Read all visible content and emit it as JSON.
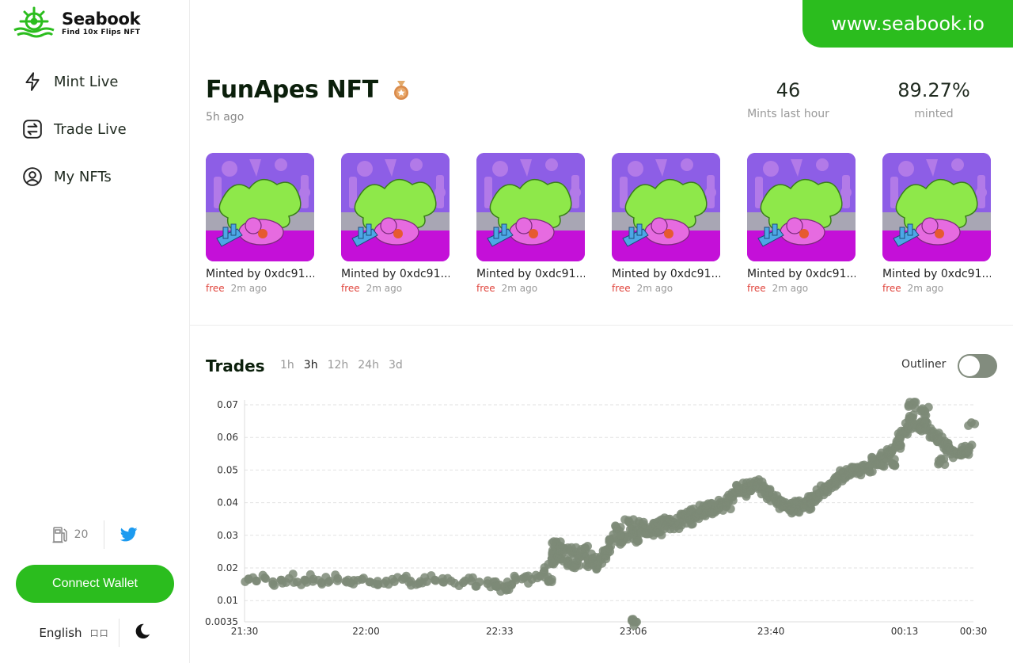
{
  "brand": {
    "name": "Seabook",
    "tagline": "Find 10x Flips NFT",
    "site": "www.seabook.io",
    "accent": "#2bbd1e"
  },
  "nav": [
    {
      "label": "Mint Live",
      "icon": "lightning-icon"
    },
    {
      "label": "Trade Live",
      "icon": "swap-icon"
    },
    {
      "label": "My NFTs",
      "icon": "user-circle-icon"
    }
  ],
  "gas": {
    "value": "20",
    "icon": "gas-pump-icon"
  },
  "connect_label": "Connect Wallet",
  "language": {
    "label": "English",
    "flag": "口口"
  },
  "collection": {
    "name": "FunApes NFT",
    "age": "5h ago",
    "stats": [
      {
        "value": "46",
        "label": "Mints last hour"
      },
      {
        "value": "89.27%",
        "label": "minted"
      }
    ]
  },
  "mints": [
    {
      "by": "Minted by 0xdc91...",
      "price": "free",
      "ago": "2m ago"
    },
    {
      "by": "Minted by 0xdc91...",
      "price": "free",
      "ago": "2m ago"
    },
    {
      "by": "Minted by 0xdc91...",
      "price": "free",
      "ago": "2m ago"
    },
    {
      "by": "Minted by 0xdc91...",
      "price": "free",
      "ago": "2m ago"
    },
    {
      "by": "Minted by 0xdc91...",
      "price": "free",
      "ago": "2m ago"
    },
    {
      "by": "Minted by 0xdc91...",
      "price": "free",
      "ago": "2m ago"
    }
  ],
  "trades": {
    "title": "Trades",
    "ranges": [
      "1h",
      "3h",
      "12h",
      "24h",
      "3d"
    ],
    "active_range": "3h",
    "outliner_label": "Outliner",
    "outliner_on": false
  },
  "chart_data": {
    "type": "scatter",
    "title": "",
    "xlabel": "",
    "ylabel": "",
    "xlim": [
      "21:30",
      "00:30"
    ],
    "ylim": [
      0.0035,
      0.07
    ],
    "y_ticks": [
      "0.07",
      "0.06",
      "0.05",
      "0.04",
      "0.03",
      "0.02",
      "0.01",
      "0.0035"
    ],
    "x_ticks": [
      "21:30",
      "22:00",
      "22:33",
      "23:06",
      "23:40",
      "00:13",
      "00:30"
    ],
    "x_tick_minutes": [
      0,
      30,
      63,
      96,
      130,
      163,
      180
    ],
    "grid": true,
    "point_color": "#7d8a77",
    "series": [
      {
        "points": [
          [
            1,
            0.0165
          ],
          [
            3,
            0.016
          ],
          [
            5,
            0.017
          ],
          [
            7,
            0.0158
          ],
          [
            9,
            0.0163
          ],
          [
            11,
            0.0168
          ],
          [
            13,
            0.0157
          ],
          [
            15,
            0.0162
          ],
          [
            17,
            0.0166
          ],
          [
            19,
            0.0155
          ],
          [
            21,
            0.016
          ],
          [
            23,
            0.0168
          ],
          [
            25,
            0.0159
          ],
          [
            27,
            0.0162
          ],
          [
            29,
            0.0165
          ],
          [
            31,
            0.0157
          ],
          [
            33,
            0.015
          ],
          [
            35,
            0.016
          ],
          [
            37,
            0.0158
          ],
          [
            39,
            0.0165
          ],
          [
            41,
            0.016
          ],
          [
            43,
            0.0152
          ],
          [
            45,
            0.0158
          ],
          [
            47,
            0.0163
          ],
          [
            49,
            0.0157
          ],
          [
            51,
            0.016
          ],
          [
            54,
            0.0155
          ],
          [
            56,
            0.016
          ],
          [
            58,
            0.0157
          ],
          [
            60,
            0.0152
          ],
          [
            62,
            0.0158
          ],
          [
            63,
            0.0148
          ],
          [
            64,
            0.0142
          ],
          [
            65,
            0.0145
          ],
          [
            66,
            0.015
          ],
          [
            67,
            0.0163
          ],
          [
            69,
            0.017
          ],
          [
            71,
            0.0165
          ],
          [
            73,
            0.0175
          ],
          [
            74,
            0.019
          ],
          [
            75,
            0.016
          ],
          [
            76,
            0.024
          ],
          [
            76,
            0.0215
          ],
          [
            77,
            0.028
          ],
          [
            78,
            0.023
          ],
          [
            79,
            0.026
          ],
          [
            80,
            0.022
          ],
          [
            81,
            0.025
          ],
          [
            82,
            0.021
          ],
          [
            83,
            0.0235
          ],
          [
            84,
            0.026
          ],
          [
            85,
            0.0215
          ],
          [
            86,
            0.023
          ],
          [
            87,
            0.021
          ],
          [
            88,
            0.0225
          ],
          [
            89,
            0.024
          ],
          [
            90,
            0.026
          ],
          [
            91,
            0.029
          ],
          [
            92,
            0.032
          ],
          [
            93,
            0.028
          ],
          [
            94,
            0.03
          ],
          [
            95,
            0.034
          ],
          [
            96,
            0.031
          ],
          [
            97,
            0.029
          ],
          [
            98,
            0.033
          ],
          [
            99,
            0.032
          ],
          [
            100,
            0.0305
          ],
          [
            101,
            0.033
          ],
          [
            102,
            0.0315
          ],
          [
            103,
            0.034
          ],
          [
            104,
            0.033
          ],
          [
            105,
            0.035
          ],
          [
            106,
            0.034
          ],
          [
            107,
            0.033
          ],
          [
            108,
            0.0355
          ],
          [
            109,
            0.036
          ],
          [
            110,
            0.0345
          ],
          [
            111,
            0.037
          ],
          [
            112,
            0.0365
          ],
          [
            113,
            0.038
          ],
          [
            114,
            0.037
          ],
          [
            115,
            0.0385
          ],
          [
            116,
            0.0375
          ],
          [
            117,
            0.0395
          ],
          [
            118,
            0.04
          ],
          [
            119,
            0.039
          ],
          [
            120,
            0.042
          ],
          [
            121,
            0.043
          ],
          [
            122,
            0.044
          ],
          [
            123,
            0.043
          ],
          [
            124,
            0.045
          ],
          [
            125,
            0.0445
          ],
          [
            126,
            0.046
          ],
          [
            127,
            0.0455
          ],
          [
            128,
            0.044
          ],
          [
            129,
            0.043
          ],
          [
            130,
            0.042
          ],
          [
            131,
            0.041
          ],
          [
            132,
            0.04
          ],
          [
            133,
            0.0395
          ],
          [
            134,
            0.0385
          ],
          [
            135,
            0.039
          ],
          [
            136,
            0.038
          ],
          [
            137,
            0.0395
          ],
          [
            138,
            0.04
          ],
          [
            139,
            0.039
          ],
          [
            140,
            0.041
          ],
          [
            141,
            0.042
          ],
          [
            142,
            0.043
          ],
          [
            143,
            0.044
          ],
          [
            144,
            0.045
          ],
          [
            145,
            0.046
          ],
          [
            146,
            0.047
          ],
          [
            147,
            0.048
          ],
          [
            148,
            0.049
          ],
          [
            149,
            0.0485
          ],
          [
            150,
            0.0495
          ],
          [
            151,
            0.05
          ],
          [
            152,
            0.0495
          ],
          [
            153,
            0.051
          ],
          [
            154,
            0.0505
          ],
          [
            155,
            0.052
          ],
          [
            156,
            0.053
          ],
          [
            157,
            0.0525
          ],
          [
            158,
            0.054
          ],
          [
            159,
            0.055
          ],
          [
            160,
            0.056
          ],
          [
            161,
            0.058
          ],
          [
            162,
            0.06
          ],
          [
            163,
            0.062
          ],
          [
            164,
            0.063
          ],
          [
            165,
            0.066
          ],
          [
            166,
            0.064
          ],
          [
            167,
            0.063
          ],
          [
            168,
            0.065
          ],
          [
            169,
            0.062
          ],
          [
            170,
            0.061
          ],
          [
            171,
            0.06
          ],
          [
            172,
            0.059
          ],
          [
            173,
            0.058
          ],
          [
            174,
            0.057
          ],
          [
            175,
            0.056
          ],
          [
            176,
            0.055
          ],
          [
            177,
            0.056
          ],
          [
            178,
            0.055
          ],
          [
            179,
            0.057
          ],
          [
            179.5,
            0.0645
          ],
          [
            165,
            0.07
          ],
          [
            160,
            0.052
          ],
          [
            168,
            0.068
          ],
          [
            172,
            0.053
          ],
          [
            96,
            0.0035
          ]
        ]
      }
    ]
  }
}
